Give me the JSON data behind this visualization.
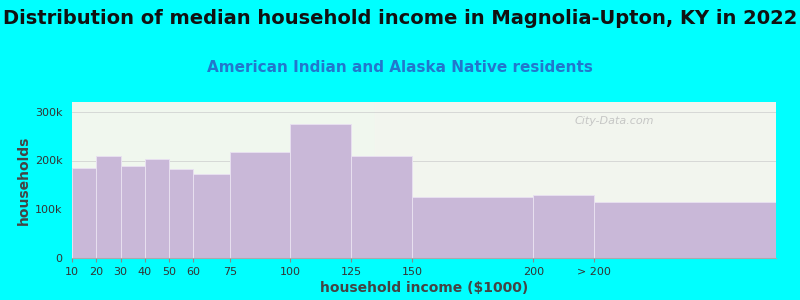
{
  "title": "Distribution of median household income in Magnolia-Upton, KY in 2022",
  "subtitle": "American Indian and Alaska Native residents",
  "xlabel": "household income ($1000)",
  "ylabel": "households",
  "bar_lefts": [
    10,
    20,
    30,
    40,
    50,
    60,
    75,
    100,
    125,
    150,
    200,
    225
  ],
  "bar_widths": [
    10,
    10,
    10,
    10,
    10,
    15,
    25,
    25,
    25,
    50,
    25,
    75
  ],
  "bar_values": [
    185000,
    210000,
    188000,
    203000,
    182000,
    172000,
    218000,
    275000,
    210000,
    125000,
    130000,
    115000
  ],
  "xtick_positions": [
    10,
    20,
    30,
    40,
    50,
    60,
    75,
    100,
    125,
    150,
    200,
    225
  ],
  "xtick_labels": [
    "10",
    "20",
    "30",
    "40",
    "50",
    "60",
    "75",
    "100",
    "125",
    "150",
    "200",
    "> 200"
  ],
  "bar_color": "#c9b8d8",
  "bar_edgecolor": "#e8e0f0",
  "background_color": "#00ffff",
  "plot_bg_color": "#f0f7ee",
  "plot_bg_right_color": "#f5f5ee",
  "ylim": [
    0,
    320000
  ],
  "yticks": [
    0,
    100000,
    200000,
    300000
  ],
  "ytick_labels": [
    "0",
    "100k",
    "200k",
    "300k"
  ],
  "watermark": "City-Data.com",
  "title_fontsize": 14,
  "subtitle_fontsize": 11,
  "axis_label_fontsize": 10,
  "tick_fontsize": 8,
  "subtitle_color": "#2277cc",
  "title_color": "#111111",
  "axis_label_color": "#444444"
}
